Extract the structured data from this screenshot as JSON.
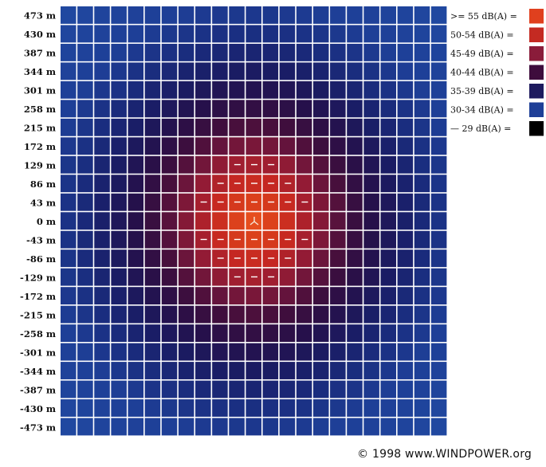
{
  "chart_data": {
    "type": "heatmap",
    "ylabels": [
      "473 m",
      "430 m",
      "387 m",
      "344 m",
      "301 m",
      "258 m",
      "215 m",
      "172 m",
      "129 m",
      "86 m",
      "43 m",
      "0 m",
      "-43 m",
      "-86 m",
      "-129 m",
      "-172 m",
      "-215 m",
      "-258 m",
      "-301 m",
      "-344 m",
      "-387 m",
      "-430 m",
      "-473 m"
    ],
    "legend": [
      {
        "label": ">= 55 dB(A) =",
        "color": "#e0401e"
      },
      {
        "label": "50-54 dB(A) =",
        "color": "#c42a22"
      },
      {
        "label": "45-49 dB(A) =",
        "color": "#8a1c3a"
      },
      {
        "label": "40-44 dB(A) =",
        "color": "#3e0c3c"
      },
      {
        "label": "35-39 dB(A) =",
        "color": "#1e1a5e"
      },
      {
        "label": "30-34 dB(A) =",
        "color": "#1f3f97"
      },
      {
        "label": "— 29 dB(A) =",
        "color": "#000000"
      }
    ],
    "grid_size": 23,
    "grid_lines": true
  },
  "footer": "© 1998 www.WINDPOWER.org"
}
